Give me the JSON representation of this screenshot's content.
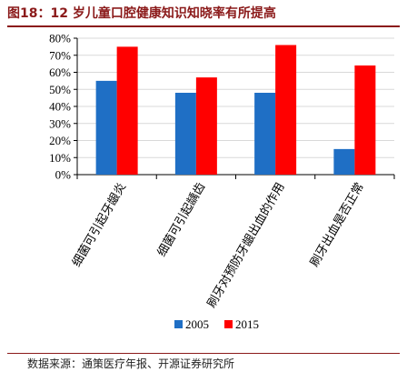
{
  "figure_title": "图18：12 岁儿童口腔健康知识知晓率有所提高",
  "source_note": "数据来源：通策医疗年报、开源证券研究所",
  "chart_data": {
    "type": "bar",
    "title": "",
    "xlabel": "",
    "ylabel": "",
    "categories": [
      "细菌可引起牙龈炎",
      "细菌可引起龋齿",
      "刷牙对预防牙龈出血的作用",
      "刷牙出血是否正常"
    ],
    "series": [
      {
        "name": "2005",
        "color": "#1f6fc5",
        "values": [
          55,
          48,
          48,
          15
        ]
      },
      {
        "name": "2015",
        "color": "#ff0000",
        "values": [
          75,
          57,
          76,
          64
        ]
      }
    ],
    "ylim": [
      0,
      80
    ],
    "yticks": [
      "0%",
      "10%",
      "20%",
      "30%",
      "40%",
      "50%",
      "60%",
      "70%",
      "80%"
    ],
    "grid": true,
    "legend": "bottom"
  }
}
